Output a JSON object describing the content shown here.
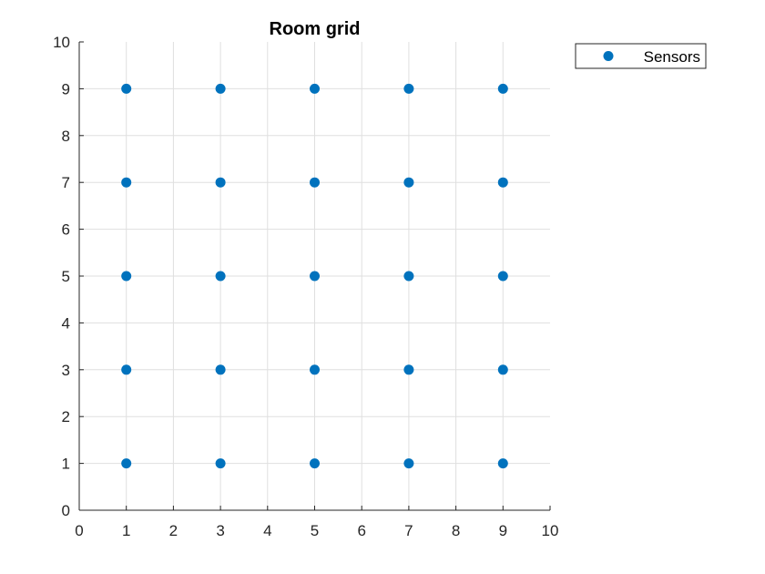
{
  "chart_data": {
    "type": "scatter",
    "title": "Room grid",
    "xlabel": "",
    "ylabel": "",
    "xlim": [
      0,
      10
    ],
    "ylim": [
      0,
      10
    ],
    "xticks": [
      0,
      1,
      2,
      3,
      4,
      5,
      6,
      7,
      8,
      9,
      10
    ],
    "yticks": [
      0,
      1,
      2,
      3,
      4,
      5,
      6,
      7,
      8,
      9,
      10
    ],
    "grid": true,
    "legend_position": "outside-top-right",
    "series": [
      {
        "name": "Sensors",
        "color": "#0072BD",
        "marker": "circle",
        "points": [
          {
            "x": 1,
            "y": 1
          },
          {
            "x": 1,
            "y": 3
          },
          {
            "x": 1,
            "y": 5
          },
          {
            "x": 1,
            "y": 7
          },
          {
            "x": 1,
            "y": 9
          },
          {
            "x": 3,
            "y": 1
          },
          {
            "x": 3,
            "y": 3
          },
          {
            "x": 3,
            "y": 5
          },
          {
            "x": 3,
            "y": 7
          },
          {
            "x": 3,
            "y": 9
          },
          {
            "x": 5,
            "y": 1
          },
          {
            "x": 5,
            "y": 3
          },
          {
            "x": 5,
            "y": 5
          },
          {
            "x": 5,
            "y": 7
          },
          {
            "x": 5,
            "y": 9
          },
          {
            "x": 7,
            "y": 1
          },
          {
            "x": 7,
            "y": 3
          },
          {
            "x": 7,
            "y": 5
          },
          {
            "x": 7,
            "y": 7
          },
          {
            "x": 7,
            "y": 9
          },
          {
            "x": 9,
            "y": 1
          },
          {
            "x": 9,
            "y": 3
          },
          {
            "x": 9,
            "y": 5
          },
          {
            "x": 9,
            "y": 7
          },
          {
            "x": 9,
            "y": 9
          }
        ]
      }
    ]
  }
}
